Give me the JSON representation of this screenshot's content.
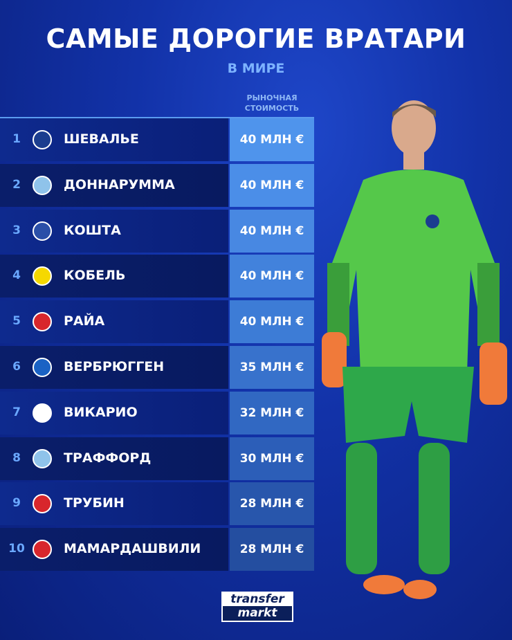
{
  "title": "САМЫЕ ДОРОГИЕ ВРАТАРИ",
  "subtitle": "В МИРЕ",
  "column_header": [
    "РЫНОЧНАЯ",
    "СТОИМОСТЬ"
  ],
  "rows": [
    {
      "rank": "1",
      "name": "ШЕВАЛЬЕ",
      "club": "psg-logo",
      "value": "40 МЛН €",
      "value_color": "#4f94ec",
      "logo_color": "#1b3d8f"
    },
    {
      "rank": "2",
      "name": "ДОННАРУММА",
      "club": "man-city-logo",
      "value": "40 МЛН €",
      "value_color": "#4b8ee8",
      "logo_color": "#8fc3ea"
    },
    {
      "rank": "3",
      "name": "КОШТА",
      "club": "porto-logo",
      "value": "40 МЛН €",
      "value_color": "#4888e2",
      "logo_color": "#2a4fa8"
    },
    {
      "rank": "4",
      "name": "КОБЕЛЬ",
      "club": "dortmund-logo",
      "value": "40 МЛН €",
      "value_color": "#4282dc",
      "logo_color": "#f5d800"
    },
    {
      "rank": "5",
      "name": "РАЙА",
      "club": "arsenal-logo",
      "value": "40 МЛН €",
      "value_color": "#3d7cd6",
      "logo_color": "#d8262c"
    },
    {
      "rank": "6",
      "name": "ВЕРБРЮГГЕН",
      "club": "brighton-logo",
      "value": "35 МЛН €",
      "value_color": "#3872cc",
      "logo_color": "#1a62c4"
    },
    {
      "rank": "7",
      "name": "ВИКАРИО",
      "club": "tottenham-logo",
      "value": "32 МЛН €",
      "value_color": "#3168c2",
      "logo_color": "#ffffff"
    },
    {
      "rank": "8",
      "name": "ТРАФФОРД",
      "club": "man-city-logo",
      "value": "30 МЛН €",
      "value_color": "#2c5eb8",
      "logo_color": "#8fc3ea"
    },
    {
      "rank": "9",
      "name": "ТРУБИН",
      "club": "benfica-logo",
      "value": "28 МЛН €",
      "value_color": "#2856ac",
      "logo_color": "#d8262c"
    },
    {
      "rank": "10",
      "name": "МАМАРДАШВИЛИ",
      "club": "liverpool-logo",
      "value": "28 МЛН €",
      "value_color": "#244ea0",
      "logo_color": "#d8262c"
    }
  ],
  "brand": [
    "transfer",
    "markt"
  ]
}
